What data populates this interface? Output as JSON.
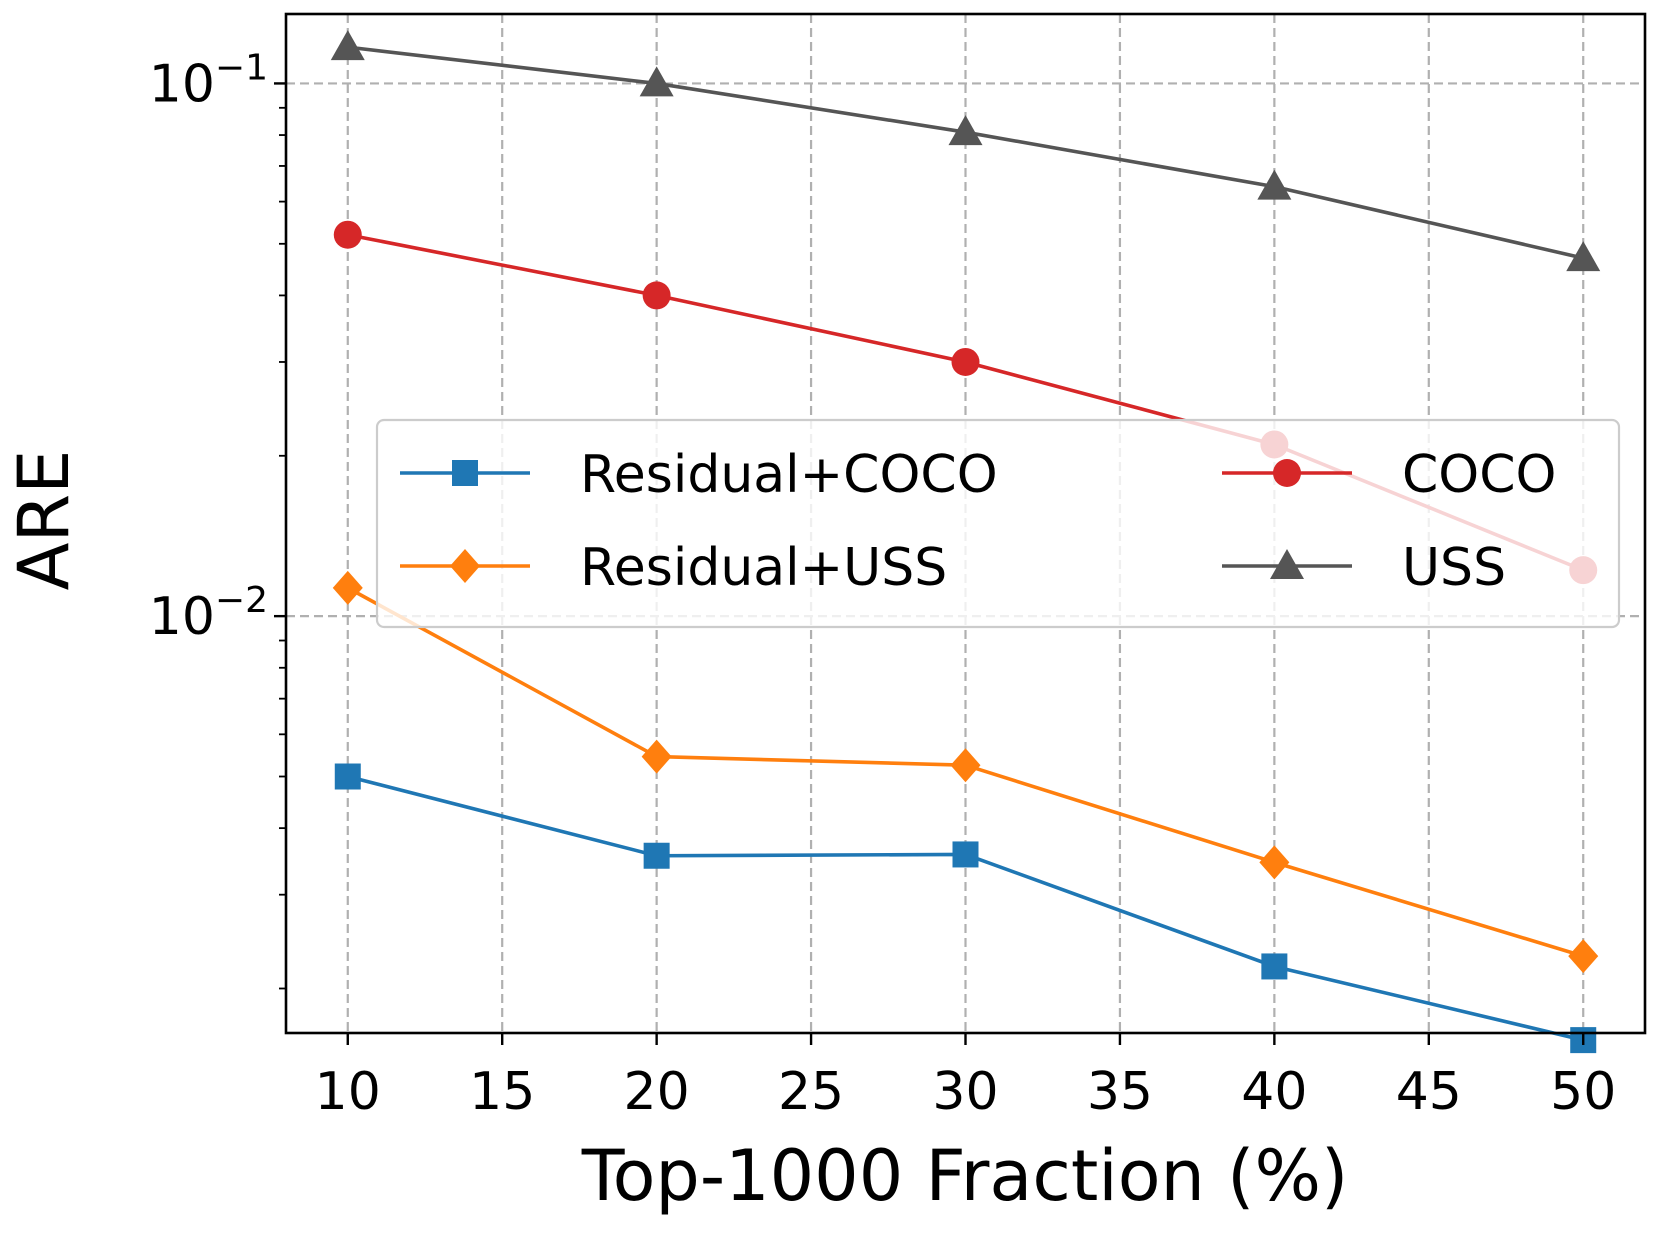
{
  "chart_data": {
    "type": "line",
    "title": "",
    "xlabel": "Top-1000 Fraction (%)",
    "ylabel": "ARE",
    "yscale": "log",
    "xlim": [
      8,
      52
    ],
    "ylim": [
      0.00165,
      0.135
    ],
    "grid": true,
    "x_ticks": [
      10,
      15,
      20,
      25,
      30,
      35,
      40,
      45,
      50
    ],
    "x_tick_labels": [
      "10",
      "15",
      "20",
      "25",
      "30",
      "35",
      "40",
      "45",
      "50"
    ],
    "y_major_ticks": [
      0.01,
      0.1
    ],
    "y_major_tick_labels": [
      {
        "base": "10",
        "exp": "−2"
      },
      {
        "base": "10",
        "exp": "−1"
      }
    ],
    "y_minor_ticks": [
      0.002,
      0.003,
      0.004,
      0.005,
      0.006,
      0.007,
      0.008,
      0.009,
      0.02,
      0.03,
      0.04,
      0.05,
      0.06,
      0.07,
      0.08,
      0.09
    ],
    "x": [
      10,
      20,
      30,
      40,
      50
    ],
    "legend": {
      "position": "center",
      "columns": 2
    },
    "series": [
      {
        "name": "Residual+COCO",
        "color": "#1f77b4",
        "marker": "square",
        "values": [
          0.005,
          0.00355,
          0.00357,
          0.0022,
          0.0016
        ]
      },
      {
        "name": "Residual+USS",
        "color": "#ff7f0e",
        "marker": "diamond",
        "values": [
          0.0113,
          0.00545,
          0.00525,
          0.00345,
          0.0023
        ]
      },
      {
        "name": "COCO",
        "color": "#d62728",
        "marker": "circle",
        "values": [
          0.052,
          0.04,
          0.03,
          0.021,
          0.0122
        ]
      },
      {
        "name": "USS",
        "color": "#555555",
        "marker": "triangle",
        "values": [
          0.117,
          0.1,
          0.081,
          0.064,
          0.047
        ]
      }
    ]
  }
}
